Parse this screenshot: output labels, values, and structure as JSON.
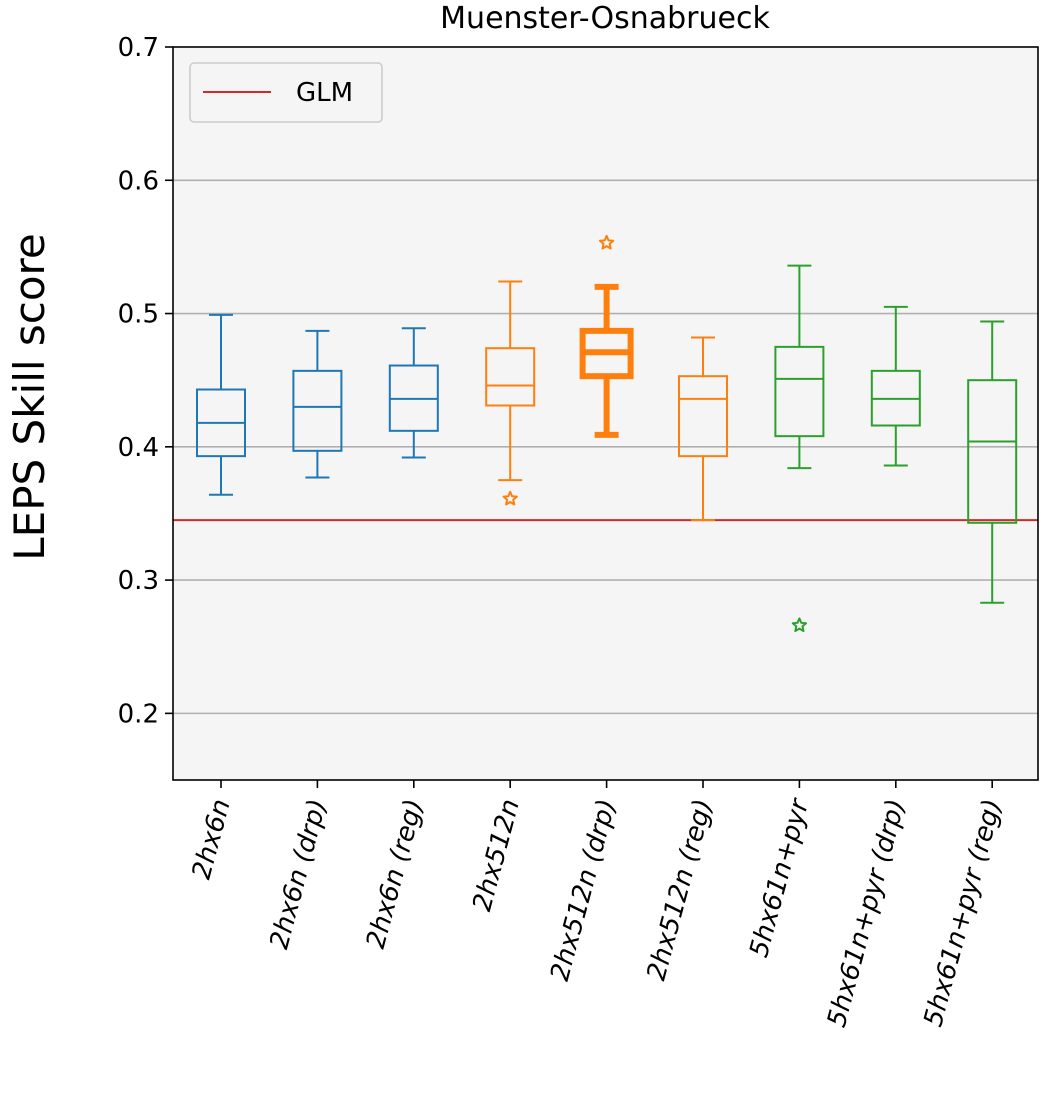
{
  "chart_data": {
    "type": "box",
    "title": "Muenster-Osnabrueck",
    "xlabel": "",
    "ylabel": "LEPS Skill score",
    "ylim": [
      0.15,
      0.7
    ],
    "yticks": [
      0.2,
      0.3,
      0.4,
      0.5,
      0.6,
      0.7
    ],
    "ytick_labels": [
      "0.2",
      "0.3",
      "0.4",
      "0.5",
      "0.6",
      "0.7"
    ],
    "grid": "horizontal",
    "legend": {
      "position": "top-left",
      "entries": [
        {
          "label": "GLM",
          "color": "#d62728"
        }
      ]
    },
    "reference_line": {
      "name": "GLM",
      "value": 0.345,
      "color": "#d62728"
    },
    "categories": [
      "2hx6n",
      "2hx6n (drp)",
      "2hx6n (reg)",
      "2hx512n",
      "2hx512n (drp)",
      "2hx512n (reg)",
      "5hx61n+pyr",
      "5hx61n+pyr (drp)",
      "5hx61n+pyr (reg)"
    ],
    "boxes": [
      {
        "whislo": 0.364,
        "q1": 0.393,
        "med": 0.418,
        "q3": 0.443,
        "whishi": 0.499,
        "fliers": [],
        "color": "#1f77b4",
        "highlight": false
      },
      {
        "whislo": 0.377,
        "q1": 0.397,
        "med": 0.43,
        "q3": 0.457,
        "whishi": 0.487,
        "fliers": [],
        "color": "#1f77b4",
        "highlight": false
      },
      {
        "whislo": 0.392,
        "q1": 0.412,
        "med": 0.436,
        "q3": 0.461,
        "whishi": 0.489,
        "fliers": [],
        "color": "#1f77b4",
        "highlight": false
      },
      {
        "whislo": 0.375,
        "q1": 0.431,
        "med": 0.446,
        "q3": 0.474,
        "whishi": 0.524,
        "fliers": [
          0.361
        ],
        "color": "#ff7f0e",
        "highlight": false
      },
      {
        "whislo": 0.409,
        "q1": 0.453,
        "med": 0.471,
        "q3": 0.487,
        "whishi": 0.52,
        "fliers": [
          0.553
        ],
        "color": "#ff7f0e",
        "highlight": true
      },
      {
        "whislo": 0.345,
        "q1": 0.393,
        "med": 0.436,
        "q3": 0.453,
        "whishi": 0.482,
        "fliers": [],
        "color": "#ff7f0e",
        "highlight": false
      },
      {
        "whislo": 0.384,
        "q1": 0.408,
        "med": 0.451,
        "q3": 0.475,
        "whishi": 0.536,
        "fliers": [
          0.266
        ],
        "color": "#2ca02c",
        "highlight": false
      },
      {
        "whislo": 0.386,
        "q1": 0.416,
        "med": 0.436,
        "q3": 0.457,
        "whishi": 0.505,
        "fliers": [],
        "color": "#2ca02c",
        "highlight": false
      },
      {
        "whislo": 0.283,
        "q1": 0.343,
        "med": 0.404,
        "q3": 0.45,
        "whishi": 0.494,
        "fliers": [],
        "color": "#2ca02c",
        "highlight": false
      }
    ]
  }
}
